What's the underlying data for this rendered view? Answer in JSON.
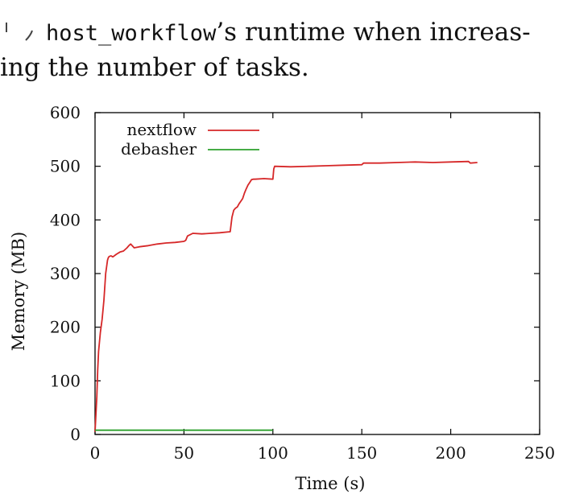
{
  "caption": {
    "code_term": "host_workflow",
    "line1_rest": "’s runtime when increas-",
    "line2": "ing the number of tasks."
  },
  "chart_data": {
    "type": "line",
    "xlabel": "Time (s)",
    "ylabel": "Memory (MB)",
    "xlim": [
      0,
      250
    ],
    "ylim": [
      0,
      600
    ],
    "xticks": [
      0,
      50,
      100,
      150,
      200,
      250
    ],
    "yticks": [
      0,
      100,
      200,
      300,
      400,
      500,
      600
    ],
    "grid": false,
    "legend_position": "top-left",
    "series": [
      {
        "name": "nextflow",
        "color": "#d62728",
        "x": [
          0,
          1,
          1.5,
          2,
          3,
          4,
          5,
          6,
          7,
          7.5,
          8,
          9,
          10,
          12,
          14,
          16,
          18,
          19,
          20,
          22,
          25,
          30,
          35,
          40,
          45,
          50,
          51,
          52,
          55,
          60,
          65,
          70,
          76,
          77,
          78,
          79,
          80,
          81,
          82,
          83,
          84,
          85,
          86,
          87,
          88,
          89,
          90,
          95,
          100,
          100.5,
          101,
          110,
          120,
          130,
          140,
          150,
          151,
          160,
          170,
          180,
          190,
          200,
          210,
          211,
          215
        ],
        "y": [
          5,
          70,
          120,
          155,
          190,
          215,
          250,
          300,
          325,
          330,
          332,
          333,
          331,
          336,
          340,
          342,
          348,
          352,
          355,
          348,
          350,
          352,
          355,
          357,
          358,
          360,
          362,
          370,
          375,
          374,
          375,
          376,
          378,
          405,
          418,
          422,
          424,
          430,
          435,
          440,
          450,
          458,
          465,
          470,
          475,
          476,
          476,
          477,
          476,
          495,
          500,
          499,
          500,
          501,
          502,
          503,
          506,
          506,
          507,
          508,
          507,
          508,
          509,
          506,
          507
        ]
      },
      {
        "name": "debasher",
        "color": "#2ca02c",
        "x": [
          0,
          100
        ],
        "y": [
          8,
          8
        ]
      }
    ]
  }
}
